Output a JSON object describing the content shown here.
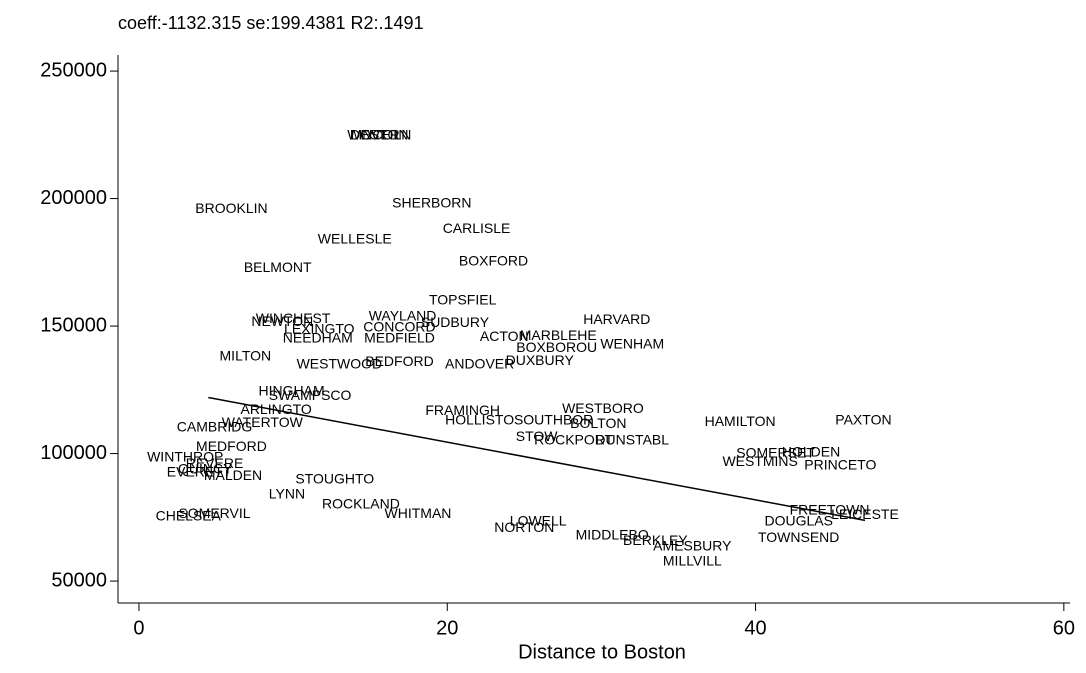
{
  "chart_data": {
    "type": "scatter",
    "title": "coeff:-1132.315 se:199.4381 R2:.1491",
    "xlabel": "Distance to Boston",
    "xlim": [
      -1.36,
      60.4
    ],
    "ylim": [
      41400,
      256300
    ],
    "xticks": [
      0,
      20,
      40,
      60
    ],
    "yticks": [
      50000,
      100000,
      150000,
      200000,
      250000
    ],
    "color": "#000000",
    "labels": [
      "WESTON",
      "DOVER",
      "LINCOLN",
      "BROOKLIN",
      "SHERBORN",
      "CARLISLE",
      "WELLESLE",
      "BOXFORD",
      "BELMONT",
      "TOPSFIEL",
      "HARVARD",
      "WAYLAND",
      "WINCHEST",
      "NEWTON",
      "CONCORD",
      "LEXINGTO",
      "SUDBURY",
      "MARBLEHE",
      "WENHAM",
      "NEEDHAM",
      "MEDFIELD",
      "ACTON",
      "BOXBOROU",
      "MILTON",
      "WESTWOOD",
      "BEDFORD",
      "ANDOVER",
      "DUXBURY",
      "HINGHAM",
      "SWAMPSCO",
      "ARLINGTO",
      "FRAMINGH",
      "WESTBORO",
      "HAMILTON",
      "PAXTON",
      "SOUTHBOR",
      "BOLTON",
      "HOLLISTO",
      "STOW",
      "ROCKPORT",
      "DUNSTABL",
      "CAMBRIDG",
      "WATERTOW",
      "WINTHROP",
      "REVERE",
      "EVERETT",
      "QUINCY",
      "MALDEN",
      "SOMERSET",
      "HOLDEN",
      "WESTMINS",
      "PRINCETO",
      "STOUGHTO",
      "LYNN",
      "ROCKLAND",
      "WHITMAN",
      "NORTON",
      "LOWELL",
      "MIDDLEBO",
      "BERKLEY",
      "AMESBURY",
      "MILLVILL",
      "TOWNSEND",
      "DOUGLAS",
      "LEICESTE",
      "FREETOWN",
      "SOMERVIL",
      "CHELSEA",
      "MEDFORD"
    ],
    "x": [
      15.5,
      15.3,
      15.7,
      6.0,
      19.0,
      21.9,
      14.0,
      23.0,
      9.0,
      21.0,
      31.0,
      17.1,
      10.0,
      9.3,
      16.9,
      11.7,
      20.5,
      27.2,
      32.0,
      11.6,
      16.9,
      23.7,
      27.1,
      6.9,
      13.0,
      16.9,
      22.1,
      26.0,
      9.9,
      11.1,
      8.9,
      21.0,
      30.1,
      39.0,
      47.0,
      26.9,
      29.8,
      22.1,
      25.8,
      28.2,
      32.0,
      4.9,
      8.0,
      3.0,
      4.9,
      3.9,
      4.3,
      6.1,
      41.3,
      43.6,
      40.3,
      45.5,
      12.7,
      9.6,
      14.4,
      18.1,
      25.0,
      25.9,
      30.7,
      33.5,
      35.9,
      35.9,
      42.8,
      42.8,
      47.1,
      44.8,
      4.9,
      3.2,
      6.0
    ],
    "values": [
      224700,
      224700,
      224700,
      195700,
      198000,
      187900,
      183900,
      175300,
      172600,
      160000,
      152200,
      153700,
      152600,
      151400,
      149400,
      148600,
      151000,
      145900,
      142700,
      145100,
      145100,
      145500,
      141200,
      138000,
      134900,
      135700,
      134900,
      136100,
      124300,
      122400,
      116900,
      116500,
      117300,
      112200,
      112900,
      112900,
      111400,
      112900,
      106300,
      105100,
      105100,
      110200,
      111800,
      98400,
      95700,
      92500,
      93700,
      91000,
      100000,
      100400,
      96500,
      95300,
      89800,
      83900,
      80000,
      76100,
      70600,
      73300,
      67800,
      65500,
      63500,
      57600,
      66700,
      73300,
      75700,
      77600,
      76100,
      75300,
      102400
    ],
    "fit": {
      "x": [
        4.5,
        47.1
      ],
      "values": [
        122000,
        73800
      ]
    }
  }
}
